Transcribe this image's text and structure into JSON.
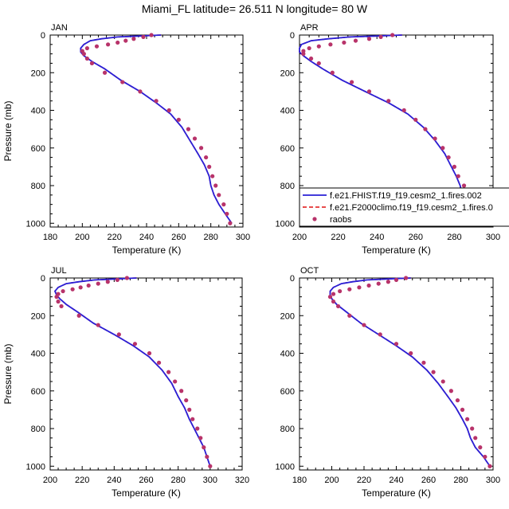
{
  "title": "Miami_FL  latitude= 26.511 N longitude= 80 W",
  "colors": {
    "model": "#2a1fd6",
    "climo": "#e01010",
    "obs": "#b8336a"
  },
  "legend": {
    "entries": [
      "f.e21.FHIST.f19_f19.cesm2_1.fires.002",
      "f.e21.F2000climo.f19_f19.cesm2_1.fires.0",
      "raobs"
    ]
  },
  "chart_data": [
    {
      "type": "line",
      "panel": "JAN",
      "xlabel": "Temperature (K)",
      "ylabel": "Pressure (mb)",
      "xlim": [
        180,
        300
      ],
      "ylim": [
        1020,
        0
      ],
      "y_reversed": true,
      "xticks": [
        180,
        200,
        220,
        240,
        260,
        280,
        300
      ],
      "yticks": [
        0,
        200,
        400,
        600,
        800,
        1000
      ],
      "series": [
        {
          "name": "f.e21.FHIST.f19_f19.cesm2_1.fires.002",
          "style": "line",
          "x": [
            249,
            236,
            222,
            212,
            205,
            201,
            199,
            199,
            201,
            206,
            214,
            224,
            236,
            246,
            255,
            262,
            267,
            272,
            276,
            279,
            280,
            282,
            285,
            289,
            293
          ],
          "y": [
            0,
            5,
            10,
            20,
            30,
            50,
            70,
            90,
            110,
            140,
            180,
            240,
            300,
            360,
            420,
            490,
            560,
            630,
            690,
            750,
            800,
            850,
            900,
            950,
            1000
          ]
        },
        {
          "name": "raobs",
          "style": "markers",
          "x": [
            243,
            238,
            232,
            227,
            222,
            216,
            209,
            203,
            200,
            201,
            203,
            206,
            214,
            225,
            236,
            246,
            254,
            260,
            266,
            270,
            274,
            277,
            279,
            281,
            283,
            285,
            288,
            290,
            292
          ],
          "y": [
            0,
            10,
            20,
            30,
            40,
            50,
            60,
            70,
            85,
            100,
            125,
            150,
            200,
            250,
            300,
            350,
            400,
            450,
            500,
            550,
            600,
            650,
            700,
            750,
            800,
            850,
            900,
            950,
            1000
          ]
        }
      ]
    },
    {
      "type": "line",
      "panel": "APR",
      "xlabel": "Temperature (K)",
      "ylabel": "",
      "xlim": [
        200,
        300
      ],
      "ylim": [
        1020,
        0
      ],
      "y_reversed": true,
      "xticks": [
        200,
        220,
        240,
        260,
        280,
        300
      ],
      "yticks": [
        0,
        200,
        400,
        600,
        800,
        1000
      ],
      "series": [
        {
          "name": "f.e21.FHIST.f19_f19.cesm2_1.fires.002",
          "style": "line",
          "x": [
            253,
            240,
            226,
            215,
            206,
            201,
            200,
            200,
            202,
            206,
            212,
            222,
            234,
            246,
            256,
            264,
            270,
            275,
            278,
            281,
            283,
            284,
            287,
            292,
            297
          ],
          "y": [
            0,
            5,
            10,
            20,
            30,
            50,
            70,
            90,
            110,
            140,
            180,
            240,
            300,
            360,
            420,
            490,
            560,
            630,
            690,
            750,
            800,
            850,
            900,
            950,
            1000
          ]
        },
        {
          "name": "raobs",
          "style": "markers",
          "x": [
            248,
            242,
            236,
            229,
            223,
            216,
            210,
            205,
            202,
            202,
            206,
            210,
            217,
            227,
            236,
            246,
            254,
            260,
            265,
            270,
            274,
            277,
            280,
            282,
            285,
            287,
            290,
            293,
            296
          ],
          "y": [
            0,
            10,
            20,
            30,
            40,
            50,
            60,
            70,
            85,
            100,
            125,
            150,
            200,
            250,
            300,
            350,
            400,
            450,
            500,
            550,
            600,
            650,
            700,
            750,
            800,
            850,
            900,
            950,
            1000
          ]
        }
      ]
    },
    {
      "type": "line",
      "panel": "JUL",
      "xlabel": "Temperature (K)",
      "ylabel": "Pressure (mb)",
      "xlim": [
        200,
        320
      ],
      "ylim": [
        1020,
        0
      ],
      "y_reversed": true,
      "xticks": [
        200,
        220,
        240,
        260,
        280,
        300,
        320
      ],
      "yticks": [
        0,
        200,
        400,
        600,
        800,
        1000
      ],
      "series": [
        {
          "name": "f.e21.FHIST.f19_f19.cesm2_1.fires.002",
          "style": "line",
          "x": [
            254,
            241,
            228,
            218,
            210,
            205,
            203,
            204,
            206,
            210,
            217,
            227,
            240,
            252,
            262,
            270,
            276,
            280,
            284,
            287,
            290,
            293,
            296,
            298,
            300
          ],
          "y": [
            0,
            5,
            10,
            20,
            30,
            50,
            70,
            90,
            110,
            140,
            180,
            240,
            300,
            360,
            420,
            490,
            560,
            630,
            690,
            750,
            800,
            850,
            900,
            950,
            1000
          ]
        },
        {
          "name": "raobs",
          "style": "markers",
          "x": [
            248,
            242,
            236,
            230,
            224,
            219,
            214,
            208,
            205,
            204,
            205,
            207,
            218,
            230,
            243,
            253,
            262,
            268,
            274,
            278,
            282,
            285,
            287,
            289,
            292,
            294,
            296,
            298,
            300
          ],
          "y": [
            0,
            10,
            20,
            30,
            40,
            50,
            60,
            70,
            85,
            100,
            125,
            150,
            200,
            250,
            300,
            350,
            400,
            450,
            500,
            550,
            600,
            650,
            700,
            750,
            800,
            850,
            900,
            950,
            1000
          ]
        }
      ]
    },
    {
      "type": "line",
      "panel": "OCT",
      "xlabel": "Temperature (K)",
      "ylabel": "",
      "xlim": [
        180,
        300
      ],
      "ylim": [
        1020,
        0
      ],
      "y_reversed": true,
      "xticks": [
        180,
        200,
        220,
        240,
        260,
        280,
        300
      ],
      "yticks": [
        0,
        200,
        400,
        600,
        800,
        1000
      ],
      "series": [
        {
          "name": "f.e21.FHIST.f19_f19.cesm2_1.fires.002",
          "style": "line",
          "x": [
            249,
            235,
            222,
            213,
            206,
            201,
            199,
            199,
            200,
            203,
            209,
            218,
            229,
            240,
            250,
            259,
            266,
            272,
            277,
            281,
            284,
            286,
            289,
            294,
            298
          ],
          "y": [
            0,
            5,
            10,
            20,
            30,
            50,
            70,
            90,
            110,
            140,
            180,
            240,
            300,
            360,
            420,
            490,
            560,
            630,
            690,
            750,
            800,
            850,
            900,
            950,
            1000
          ]
        },
        {
          "name": "raobs",
          "style": "markers",
          "x": [
            246,
            240,
            235,
            229,
            223,
            217,
            211,
            205,
            201,
            199,
            201,
            204,
            211,
            220,
            230,
            240,
            249,
            257,
            263,
            269,
            274,
            278,
            281,
            284,
            287,
            289,
            292,
            295,
            298
          ],
          "y": [
            0,
            10,
            20,
            30,
            40,
            50,
            60,
            70,
            85,
            100,
            125,
            150,
            200,
            250,
            300,
            350,
            400,
            450,
            500,
            550,
            600,
            650,
            700,
            750,
            800,
            850,
            900,
            950,
            1000
          ]
        }
      ]
    }
  ]
}
